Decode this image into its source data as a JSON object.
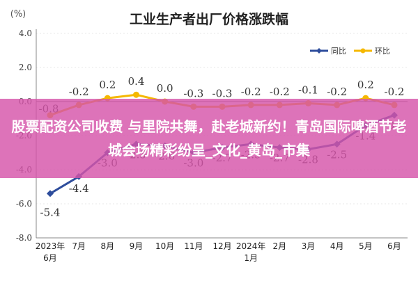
{
  "overlay": {
    "headline": "股票配资公司收费 与里院共舞，赴老城新约！青岛国际啤酒节老城会场精彩纷呈_文化_黄岛_市集"
  },
  "colors": {
    "mom": "#2E4D9C",
    "yoy": "#F5B800",
    "axis": "#888888",
    "grid": "#cfcfcf",
    "title": "#222222"
  },
  "chart_data": {
    "type": "line",
    "title": "工业生产者出厂价格涨跌幅",
    "unit": "(%)",
    "categories": [
      [
        "2023年",
        "6月"
      ],
      [
        "7月"
      ],
      [
        "8月"
      ],
      [
        "9月"
      ],
      [
        "10月"
      ],
      [
        "11月"
      ],
      [
        "12月"
      ],
      [
        "2024年",
        "1月"
      ],
      [
        "2月"
      ],
      [
        "3月"
      ],
      [
        "4月"
      ],
      [
        "5月"
      ],
      [
        "6月"
      ]
    ],
    "ylim": [
      -8.0,
      4.0
    ],
    "yticks": [
      "4.0",
      "2.0",
      "0.0",
      "-2.0",
      "-4.0",
      "-6.0",
      "-8.0"
    ],
    "legend_position": "top-right",
    "series": [
      {
        "name": "同比",
        "values": [
          -5.4,
          -4.4,
          -3.0,
          -2.5,
          -2.6,
          -3.0,
          -2.7,
          -2.5,
          -2.7,
          -2.8,
          -2.5,
          -1.4,
          -0.8
        ],
        "labels": [
          "-5.4",
          "-4.4",
          "-3.0",
          "-2.5",
          "-2.6",
          "-3.0",
          "-2.7",
          "-2.5",
          "-2.7",
          "-2.8",
          "-2.5",
          "-1.4",
          "-0.8"
        ]
      },
      {
        "name": "环比",
        "values": [
          -0.8,
          -0.2,
          0.2,
          0.4,
          0.0,
          -0.3,
          -0.3,
          -0.2,
          -0.2,
          -0.1,
          -0.2,
          0.2,
          -0.2
        ],
        "labels": [
          "-0.8",
          "-0.2",
          "0.2",
          "0.4",
          "0.0",
          "-0.3",
          "-0.3",
          "-0.2",
          "-0.2",
          "-0.1",
          "-0.2",
          "0.2",
          "-0.2"
        ]
      }
    ]
  }
}
